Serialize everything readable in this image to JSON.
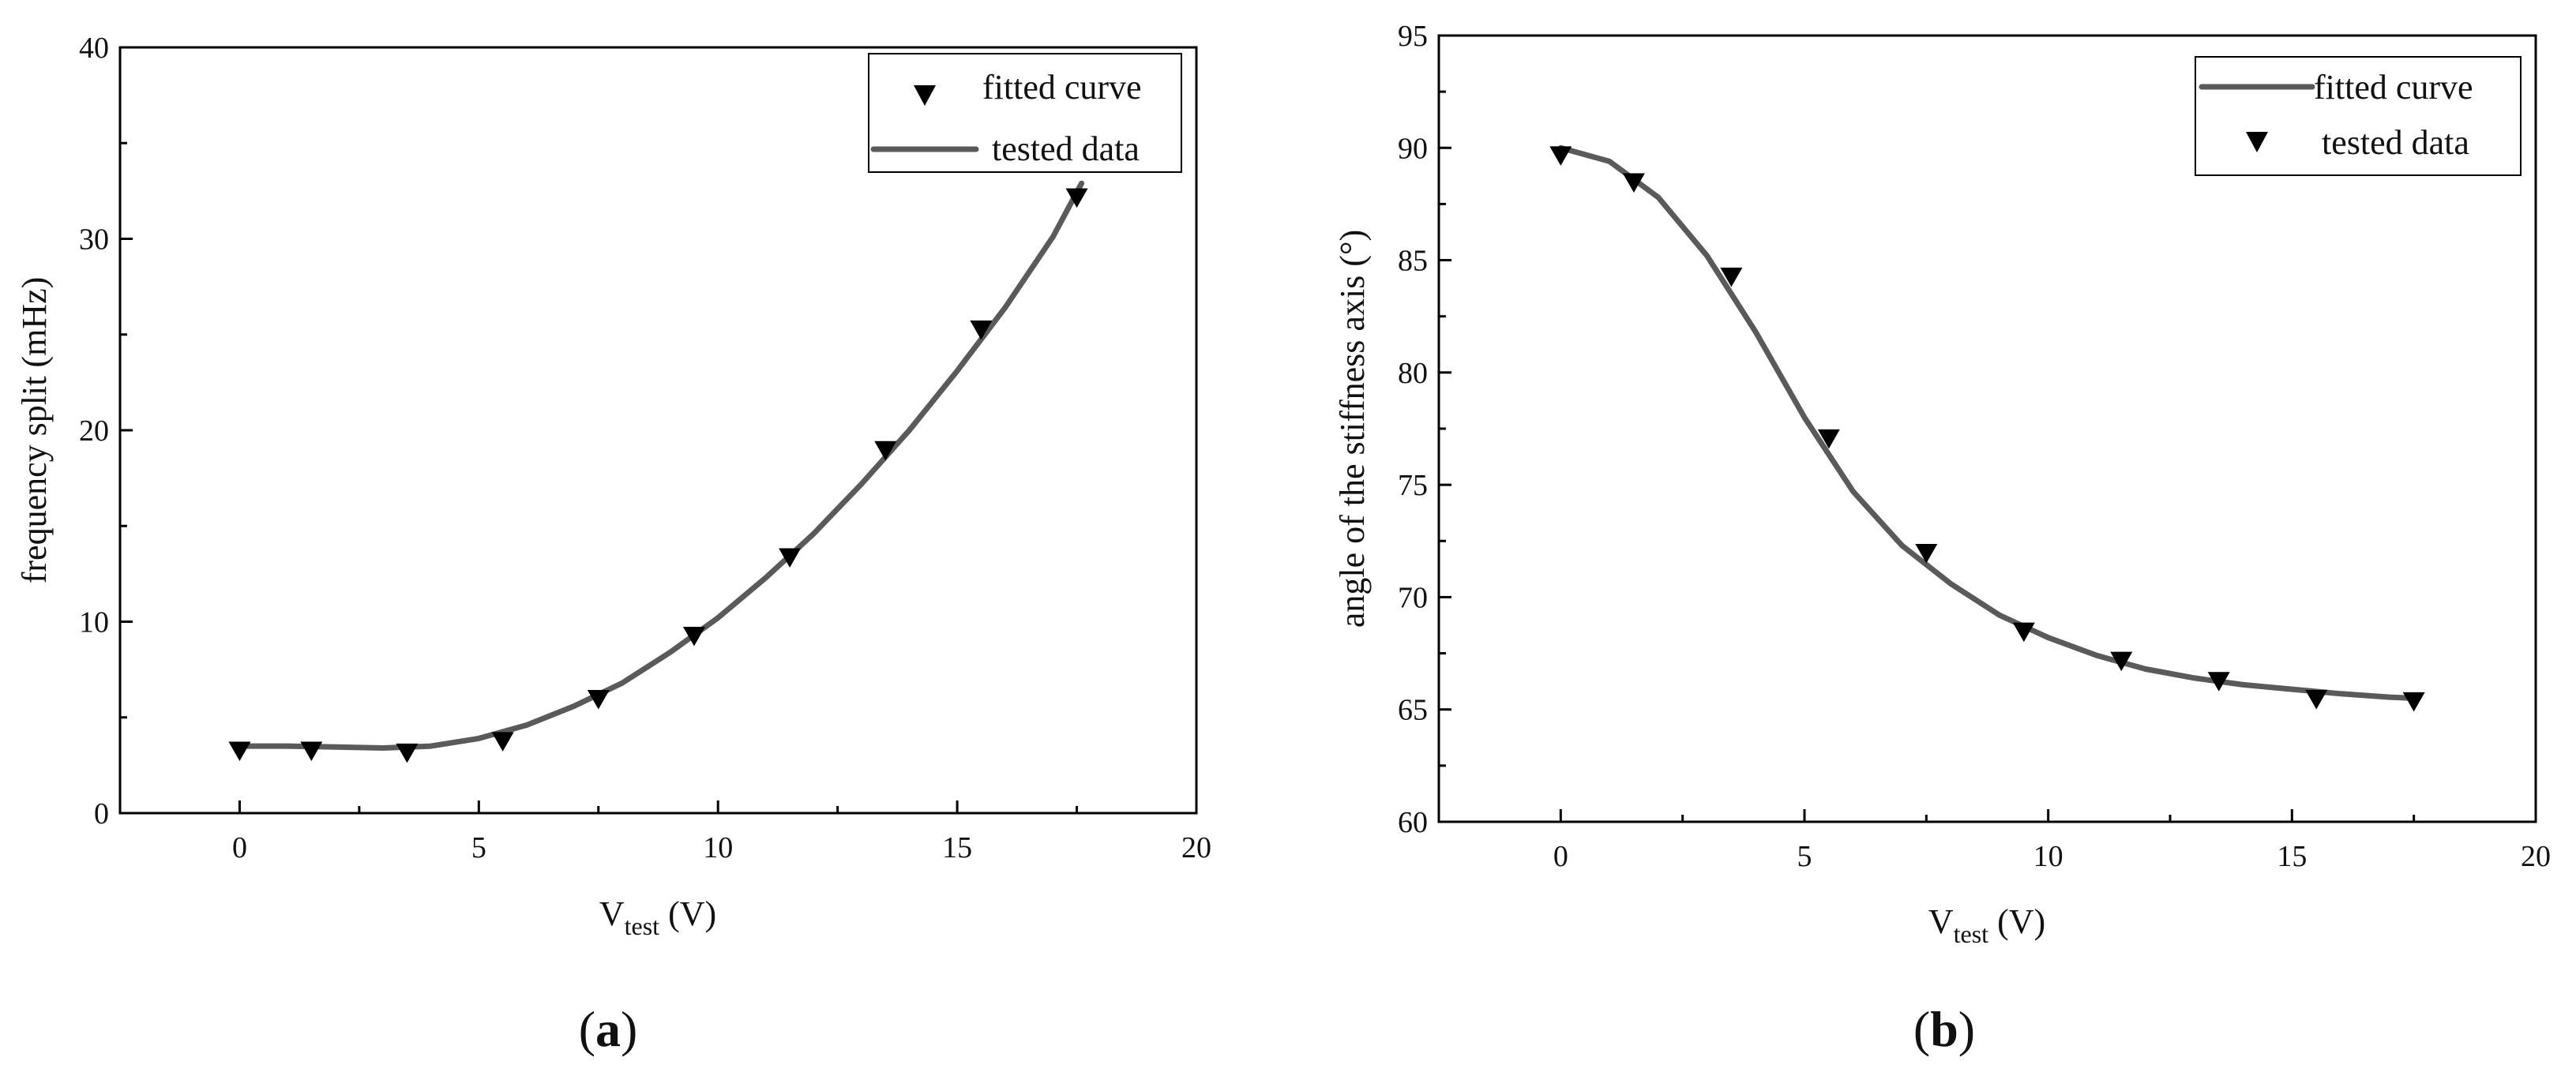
{
  "chart_data": [
    {
      "type": "scatter",
      "panel_label": "a",
      "xlabel": {
        "main": "V",
        "sub": "test",
        "unit": " (V)"
      },
      "ylabel": "frequency split (mHz)",
      "xlim": [
        -2.5,
        20
      ],
      "ylim": [
        0,
        40
      ],
      "xticks": [
        0,
        5,
        10,
        15,
        20
      ],
      "yticks": [
        0,
        10,
        20,
        30,
        40
      ],
      "grid": false,
      "legend_position": "top-right",
      "legend": [
        {
          "name": "fitted curve",
          "marker": "triangle-down"
        },
        {
          "name": "tested data",
          "marker": "line"
        }
      ],
      "colors": {
        "markers": "#000000",
        "curve": "#5a5a5a"
      },
      "series": [
        {
          "name": "fitted curve",
          "kind": "markers",
          "x": [
            0,
            1.5,
            3.5,
            5.5,
            7.5,
            9.5,
            11.5,
            13.5,
            15.5,
            17.5
          ],
          "y": [
            3.3,
            3.3,
            3.2,
            3.8,
            6.0,
            9.3,
            13.4,
            19.0,
            25.3,
            32.2
          ]
        },
        {
          "name": "tested data",
          "kind": "line",
          "x": [
            0,
            1,
            2,
            3,
            4,
            5,
            6,
            7,
            8,
            9,
            10,
            11,
            12,
            13,
            14,
            15,
            16,
            17,
            17.6
          ],
          "y": [
            3.5,
            3.5,
            3.45,
            3.4,
            3.5,
            3.9,
            4.6,
            5.6,
            6.8,
            8.4,
            10.2,
            12.3,
            14.6,
            17.2,
            20.0,
            23.1,
            26.4,
            30.1,
            32.9
          ]
        }
      ]
    },
    {
      "type": "scatter",
      "panel_label": "b",
      "xlabel": {
        "main": "V",
        "sub": "test",
        "unit": " (V)"
      },
      "ylabel": "angle of the stiffness axis (°)",
      "xlim": [
        -2.5,
        20
      ],
      "ylim": [
        60,
        95
      ],
      "xticks": [
        0,
        5,
        10,
        15,
        20
      ],
      "yticks": [
        60,
        65,
        70,
        75,
        80,
        85,
        90,
        95
      ],
      "grid": false,
      "legend_position": "top-right",
      "legend": [
        {
          "name": "fitted curve",
          "marker": "line"
        },
        {
          "name": "tested data",
          "marker": "triangle-down"
        }
      ],
      "colors": {
        "markers": "#000000",
        "curve": "#5a5a5a"
      },
      "series": [
        {
          "name": "fitted curve",
          "kind": "line",
          "x": [
            0,
            1,
            2,
            3,
            4,
            5,
            6,
            7,
            8,
            9,
            10,
            11,
            12,
            13,
            14,
            15,
            16,
            17,
            17.5
          ],
          "y": [
            90.0,
            89.4,
            87.8,
            85.2,
            81.8,
            78.0,
            74.7,
            72.3,
            70.6,
            69.2,
            68.2,
            67.4,
            66.8,
            66.4,
            66.1,
            65.9,
            65.7,
            65.55,
            65.5
          ]
        },
        {
          "name": "tested data",
          "kind": "markers",
          "x": [
            0,
            1.5,
            3.5,
            5.5,
            7.5,
            9.5,
            11.5,
            13.5,
            15.5,
            17.5
          ],
          "y": [
            89.7,
            88.5,
            84.3,
            77.1,
            72.0,
            68.5,
            67.2,
            66.3,
            65.5,
            65.4
          ]
        }
      ]
    }
  ]
}
